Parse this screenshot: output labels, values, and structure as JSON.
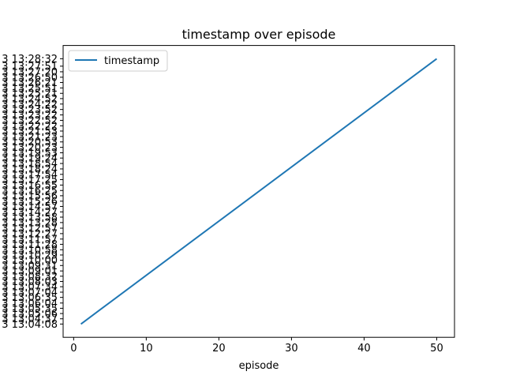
{
  "chart_data": {
    "type": "line",
    "title": "timestamp over episode",
    "xlabel": "episode",
    "ylabel": "",
    "xlim": [
      -1.45,
      52.45
    ],
    "x_ticks": [
      0,
      10,
      20,
      30,
      40,
      50
    ],
    "x_tick_labels": [
      "0",
      "10",
      "20",
      "30",
      "40",
      "50"
    ],
    "y_ticks": [
      "13:04:08",
      "13:04:37",
      "13:05:06",
      "13:05:35",
      "13:06:04",
      "13:06:35",
      "13:07:04",
      "13:07:34",
      "13:08:03",
      "13:08:32",
      "13:09:01",
      "13:09:31",
      "13:10:00",
      "13:10:29",
      "13:10:58",
      "13:11:28",
      "13:11:57",
      "13:12:27",
      "13:12:57",
      "13:13:28",
      "13:13:58",
      "13:14:27",
      "13:14:57",
      "13:15:26",
      "13:15:56",
      "13:16:25",
      "13:16:55",
      "13:17:25",
      "13:17:54",
      "13:18:24",
      "13:18:54",
      "13:19:24",
      "13:19:53",
      "13:20:23",
      "13:20:53",
      "13:21:23",
      "13:21:53",
      "13:22:22",
      "13:22:52",
      "13:23:22",
      "13:23:52",
      "13:24:22",
      "13:24:52",
      "13:25:21",
      "13:25:51",
      "13:26:21",
      "13:26:50",
      "13:27:20",
      "13:27:51",
      "13:28:32"
    ],
    "ytick_prefix": "3 ",
    "series": [
      {
        "name": "timestamp",
        "color": "#1f77b4",
        "x": [
          1,
          50
        ],
        "y": [
          "13:04:08",
          "13:28:32"
        ]
      }
    ],
    "legend_position": "top-left",
    "grid": false
  }
}
